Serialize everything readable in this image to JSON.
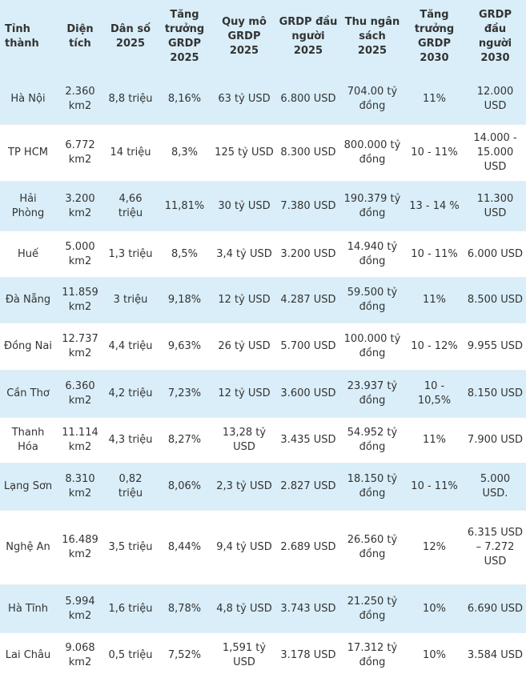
{
  "table": {
    "header": [
      "Tỉnh thành",
      "Diện tích",
      "Dân số 2025",
      "Tăng trưởng GRDP 2025",
      "Quy mô GRDP 2025",
      "GRDP đầu người 2025",
      "Thu ngân sách 2025",
      "Tăng trưởng GRDP 2030",
      "GRDP đầu người 2030"
    ],
    "rows": [
      [
        "Hà Nội",
        "2.360 km2",
        "8,8 triệu",
        "8,16%",
        "63 tỷ USD",
        "6.800 USD",
        "704.00 tỷ đồng",
        "11%",
        "12.000 USD"
      ],
      [
        "TP HCM",
        "6.772 km2",
        "14 triệu",
        "8,3%",
        "125 tỷ USD",
        "8.300 USD",
        "800.000 tỷ đồng",
        "10 - 11%",
        "14.000 - 15.000 USD"
      ],
      [
        "Hải Phòng",
        "3.200 km2",
        "4,66 triệu",
        "11,81%",
        "30 tỷ USD",
        "7.380 USD",
        "190.379 tỷ đồng",
        "13 - 14 %",
        "11.300 USD"
      ],
      [
        "Huế",
        "5.000 km2",
        "1,3 triệu",
        "8,5%",
        "3,4 tỷ USD",
        "3.200 USD",
        "14.940 tỷ đồng",
        "10 - 11%",
        "6.000 USD"
      ],
      [
        "Đà Nẵng",
        "11.859 km2",
        "3 triệu",
        "9,18%",
        "12 tỷ USD",
        "4.287 USD",
        "59.500 tỷ đồng",
        "11%",
        "8.500 USD"
      ],
      [
        "Đồng Nai",
        "12.737 km2",
        "4,4 triệu",
        "9,63%",
        "26 tỷ USD",
        "5.700 USD",
        "100.000 tỷ đồng",
        "10 - 12%",
        "9.955 USD"
      ],
      [
        "Cần Thơ",
        "6.360 km2",
        "4,2 triệu",
        "7,23%",
        "12 tỷ USD",
        "3.600 USD",
        "23.937 tỷ đồng",
        "10 - 10,5%",
        "8.150 USD"
      ],
      [
        "Thanh Hóa",
        "11.114 km2",
        "4,3 triệu",
        "8,27%",
        "13,28 tỷ USD",
        "3.435 USD",
        "54.952 tỷ đồng",
        "11%",
        "7.900 USD"
      ],
      [
        "Lạng Sơn",
        "8.310 km2",
        "0,82 triệu",
        "8,06%",
        "2,3 tỷ USD",
        "2.827 USD",
        "18.150 tỷ đồng",
        "10 - 11%",
        "5.000 USD."
      ],
      [
        "Nghệ An",
        "16.489 km2",
        "3,5 triệu",
        "8,44%",
        "9,4 tỷ USD",
        "2.689 USD",
        "26.560 tỷ đồng",
        "12%",
        "6.315 USD – 7.272 USD"
      ],
      [
        "Hà Tĩnh",
        "5.994 km2",
        "1,6 triệu",
        "8,78%",
        "4,8 tỷ USD",
        "3.743 USD",
        "21.250 tỷ đồng",
        "10%",
        "6.690 USD"
      ],
      [
        "Lai Châu",
        "9.068 km2",
        "0,5 triệu",
        "7,52%",
        "1,591 tỷ USD",
        "3.178 USD",
        "17.312 tỷ đồng",
        "10%",
        "3.584 USD"
      ]
    ]
  }
}
